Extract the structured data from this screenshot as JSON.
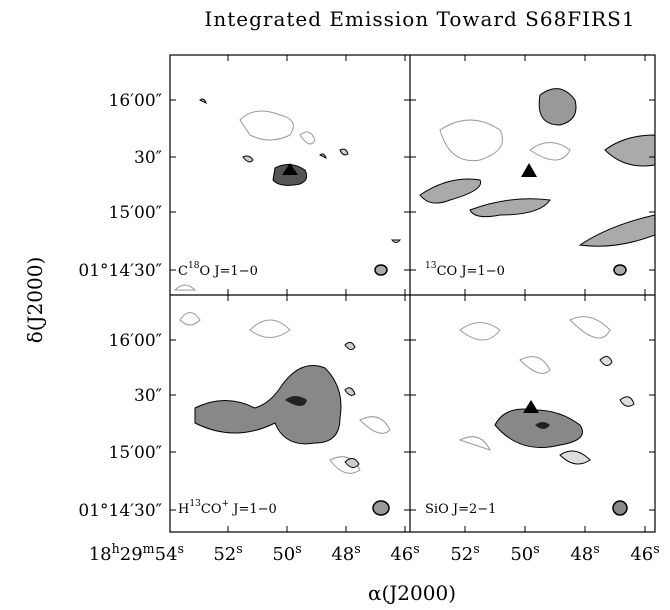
{
  "title": "Integrated Emission Toward S68FIRS1",
  "y_axis_label": "δ(J2000)",
  "x_axis_label": "α(J2000)",
  "y_tick_labels": [
    "16′00″",
    "30″",
    "15′00″",
    "01°14′30″"
  ],
  "x_tick_labels_left": [
    [
      {
        "t": "18"
      },
      {
        "sup": "h"
      },
      {
        "t": "29"
      },
      {
        "sup": "m"
      },
      {
        "t": "54"
      },
      {
        "sup": "s"
      }
    ],
    [
      {
        "t": "52"
      },
      {
        "sup": "s"
      }
    ],
    [
      {
        "t": "50"
      },
      {
        "sup": "s"
      }
    ],
    [
      {
        "t": "48"
      },
      {
        "sup": "s"
      }
    ],
    [
      {
        "t": "46"
      },
      {
        "sup": "s"
      }
    ]
  ],
  "x_tick_labels_right": [
    [
      {
        "t": "52"
      },
      {
        "sup": "s"
      }
    ],
    [
      {
        "t": "50"
      },
      {
        "sup": "s"
      }
    ],
    [
      {
        "t": "48"
      },
      {
        "sup": "s"
      }
    ],
    [
      {
        "t": "46"
      },
      {
        "sup": "s"
      }
    ]
  ],
  "panels": [
    {
      "label": [
        {
          "t": "C"
        },
        {
          "sup": "18"
        },
        {
          "t": "O J=1−0"
        }
      ]
    },
    {
      "label": [
        {
          "sup": "13"
        },
        {
          "t": "CO J=1−0"
        }
      ]
    },
    {
      "label": [
        {
          "t": "H"
        },
        {
          "sup": "13"
        },
        {
          "t": "CO"
        },
        {
          "sup": "+"
        },
        {
          "t": " J=1−0"
        }
      ]
    },
    {
      "label": [
        {
          "t": "SiO J=2−1"
        }
      ]
    }
  ]
}
